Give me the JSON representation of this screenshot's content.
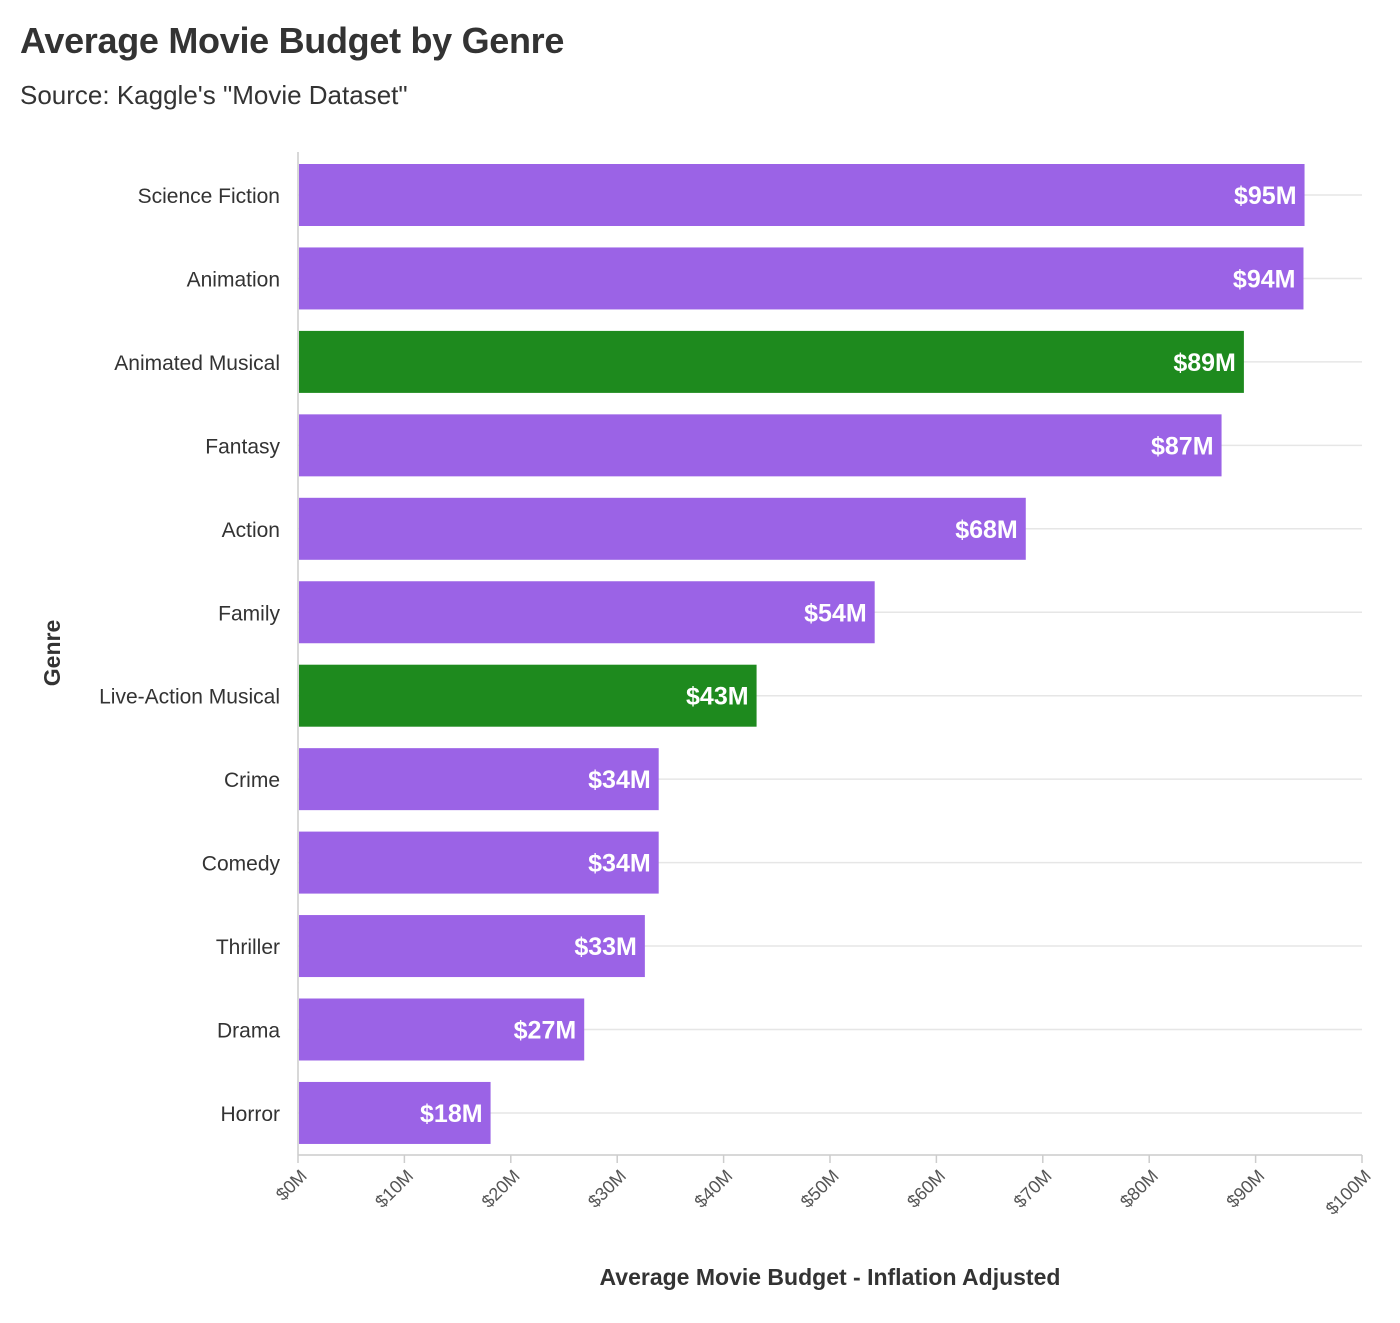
{
  "chart_data": {
    "type": "bar",
    "orientation": "horizontal",
    "title": "Average Movie Budget by Genre",
    "subtitle": "Source: Kaggle's \"Movie Dataset\"",
    "xlabel": "Average Movie Budget - Inflation Adjusted",
    "ylabel": "Genre",
    "xlim": [
      0,
      100
    ],
    "grid": true,
    "x_ticks": [
      0,
      10,
      20,
      30,
      40,
      50,
      60,
      70,
      80,
      90,
      100
    ],
    "x_tick_labels": [
      "$0M",
      "$10M",
      "$20M",
      "$30M",
      "$40M",
      "$50M",
      "$60M",
      "$70M",
      "$80M",
      "$90M",
      "$100M"
    ],
    "categories": [
      "Science Fiction",
      "Animation",
      "Animated Musical",
      "Fantasy",
      "Action",
      "Family",
      "Live-Action Musical",
      "Crime",
      "Comedy",
      "Thriller",
      "Drama",
      "Horror"
    ],
    "values": [
      94.6,
      94.5,
      88.9,
      86.8,
      68.4,
      54.2,
      43.1,
      33.9,
      33.9,
      32.6,
      26.9,
      18.1
    ],
    "value_labels": [
      "$95M",
      "$94M",
      "$89M",
      "$87M",
      "$68M",
      "$54M",
      "$43M",
      "$34M",
      "$34M",
      "$33M",
      "$27M",
      "$18M"
    ],
    "highlight": [
      false,
      false,
      true,
      false,
      false,
      false,
      true,
      false,
      false,
      false,
      false,
      false
    ],
    "colors": {
      "default": "#9b63e6",
      "highlight": "#1e8a1e",
      "grid": "#e6e6e6",
      "axis": "#cccccc"
    }
  }
}
